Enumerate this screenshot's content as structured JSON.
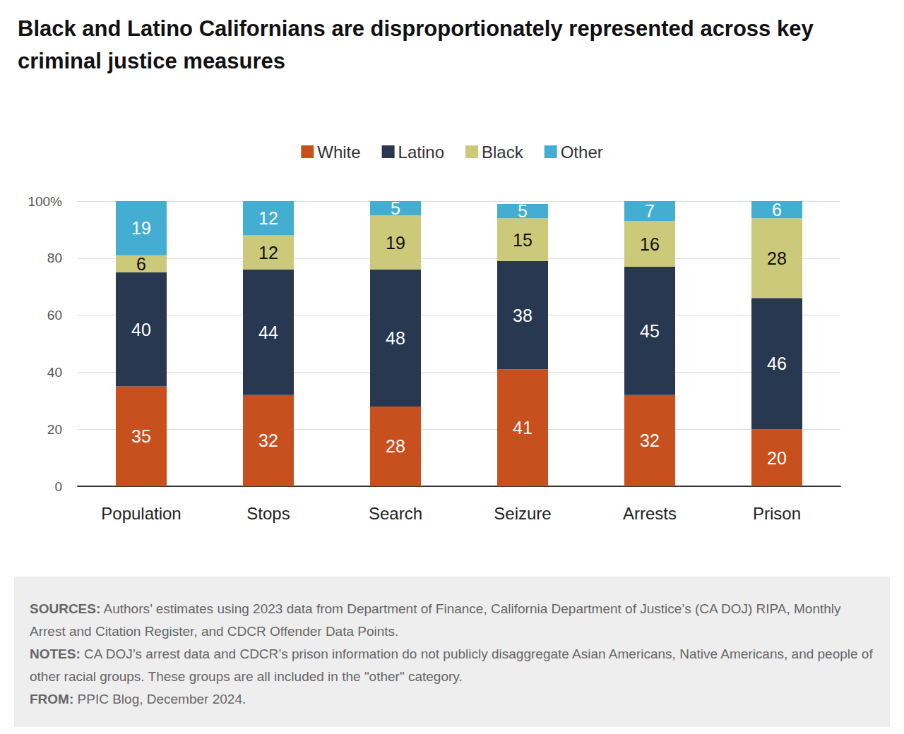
{
  "chart_data": {
    "type": "bar",
    "title": "Black and Latino Californians are disproportionately represented across key criminal justice measures",
    "categories": [
      "Population",
      "Stops",
      "Search",
      "Seizure",
      "Arrests",
      "Prison"
    ],
    "series": [
      {
        "name": "White",
        "color": "#c8501e",
        "values": [
          35,
          32,
          28,
          41,
          32,
          20
        ]
      },
      {
        "name": "Latino",
        "color": "#283850",
        "values": [
          40,
          44,
          48,
          38,
          45,
          46
        ]
      },
      {
        "name": "Black",
        "color": "#cdc97a",
        "values": [
          6,
          12,
          19,
          15,
          16,
          28
        ]
      },
      {
        "name": "Other",
        "color": "#44aed2",
        "values": [
          19,
          12,
          5,
          5,
          7,
          6
        ]
      }
    ],
    "ylim": [
      0,
      100
    ],
    "yticks": [
      0,
      20,
      40,
      60,
      80,
      {
        "value": 100,
        "label": "100%"
      }
    ],
    "stacked": true,
    "data_labels": true,
    "grid": true,
    "legend": "top",
    "footnotes": [
      {
        "label": "SOURCES:",
        "text": "Authors’ estimates using 2023 data from Department of Finance, California Department of Justice’s (CA DOJ) RIPA, Monthly Arrest and Citation Register, and CDCR Offender Data Points."
      },
      {
        "label": "NOTES:",
        "text": "CA DOJ’s arrest data and CDCR’s prison information do not publicly disaggregate Asian Americans, Native Americans, and people of other racial groups. These groups are all included in the \"other\" category."
      },
      {
        "label": "FROM:",
        "text": "PPIC Blog, December 2024."
      }
    ]
  }
}
